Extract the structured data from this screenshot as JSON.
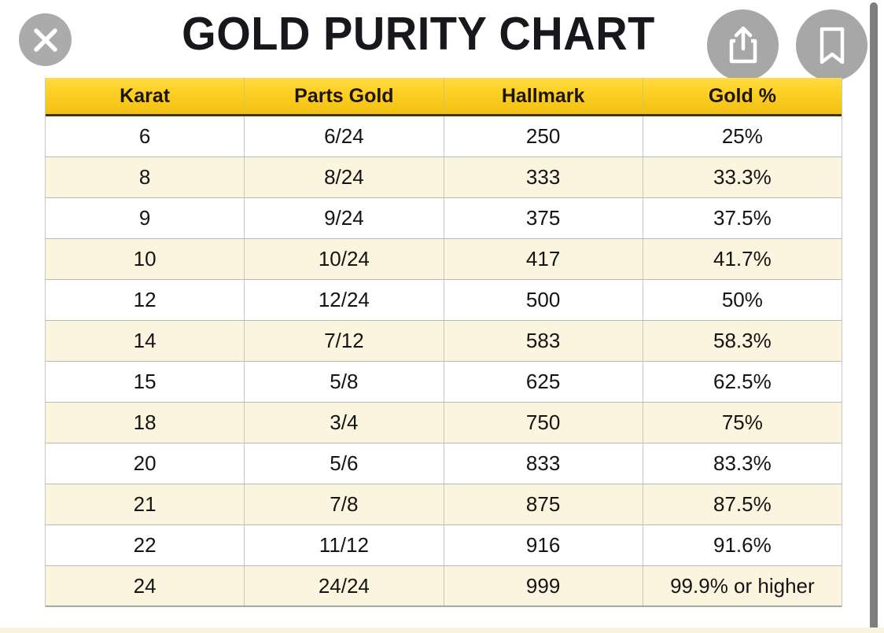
{
  "title": "GOLD PURITY CHART",
  "toolbar": {
    "close_icon": "close-x",
    "share_icon": "share-up-arrow",
    "bookmark_icon": "bookmark"
  },
  "chart_data": {
    "type": "table",
    "title": "GOLD PURITY CHART",
    "columns": [
      "Karat",
      "Parts Gold",
      "Hallmark",
      "Gold %"
    ],
    "rows": [
      [
        "6",
        "6/24",
        "250",
        "25%"
      ],
      [
        "8",
        "8/24",
        "333",
        "33.3%"
      ],
      [
        "9",
        "9/24",
        "375",
        "37.5%"
      ],
      [
        "10",
        "10/24",
        "417",
        "41.7%"
      ],
      [
        "12",
        "12/24",
        "500",
        "50%"
      ],
      [
        "14",
        "7/12",
        "583",
        "58.3%"
      ],
      [
        "15",
        "5/8",
        "625",
        "62.5%"
      ],
      [
        "18",
        "3/4",
        "750",
        "75%"
      ],
      [
        "20",
        "5/6",
        "833",
        "83.3%"
      ],
      [
        "21",
        "7/8",
        "875",
        "87.5%"
      ],
      [
        "22",
        "11/12",
        "916",
        "91.6%"
      ],
      [
        "24",
        "24/24",
        "999",
        "99.9% or higher"
      ]
    ]
  },
  "colors": {
    "header_gradient_top": "#FFD32A",
    "header_gradient_bottom": "#F2C011",
    "header_border_bottom": "#3E3508",
    "row_background": "#FFFFFF",
    "row_alt_background": "#FBF5DF",
    "grid_border": "#B9B9B4",
    "text": "#141414",
    "title_text": "#17171C",
    "icon_circle": "#ABABAB",
    "icon_glyph": "#FFFFFF",
    "scrollbar": "#7E7E7E"
  }
}
